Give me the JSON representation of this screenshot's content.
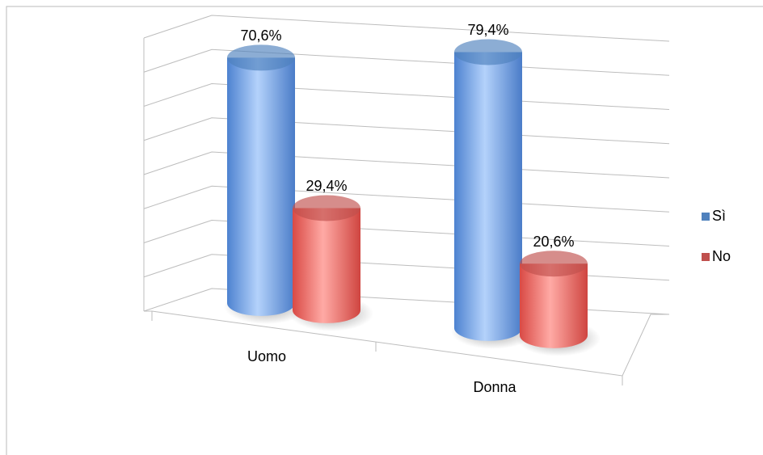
{
  "chart_data": {
    "type": "bar3d",
    "categories": [
      "Uomo",
      "Donna"
    ],
    "series": [
      {
        "name": "Sì",
        "color": "#4f81bd",
        "values": [
          70.6,
          79.4
        ],
        "value_labels": [
          "70,6%",
          "79,4%"
        ]
      },
      {
        "name": "No",
        "color": "#c0504d",
        "values": [
          29.4,
          20.6
        ],
        "value_labels": [
          "29,4%",
          "20,6%"
        ]
      }
    ],
    "ylim": [
      0,
      80
    ],
    "yticks": [
      0,
      10,
      20,
      30,
      40,
      50,
      60,
      70,
      80
    ],
    "grid": true,
    "legend": "right"
  }
}
